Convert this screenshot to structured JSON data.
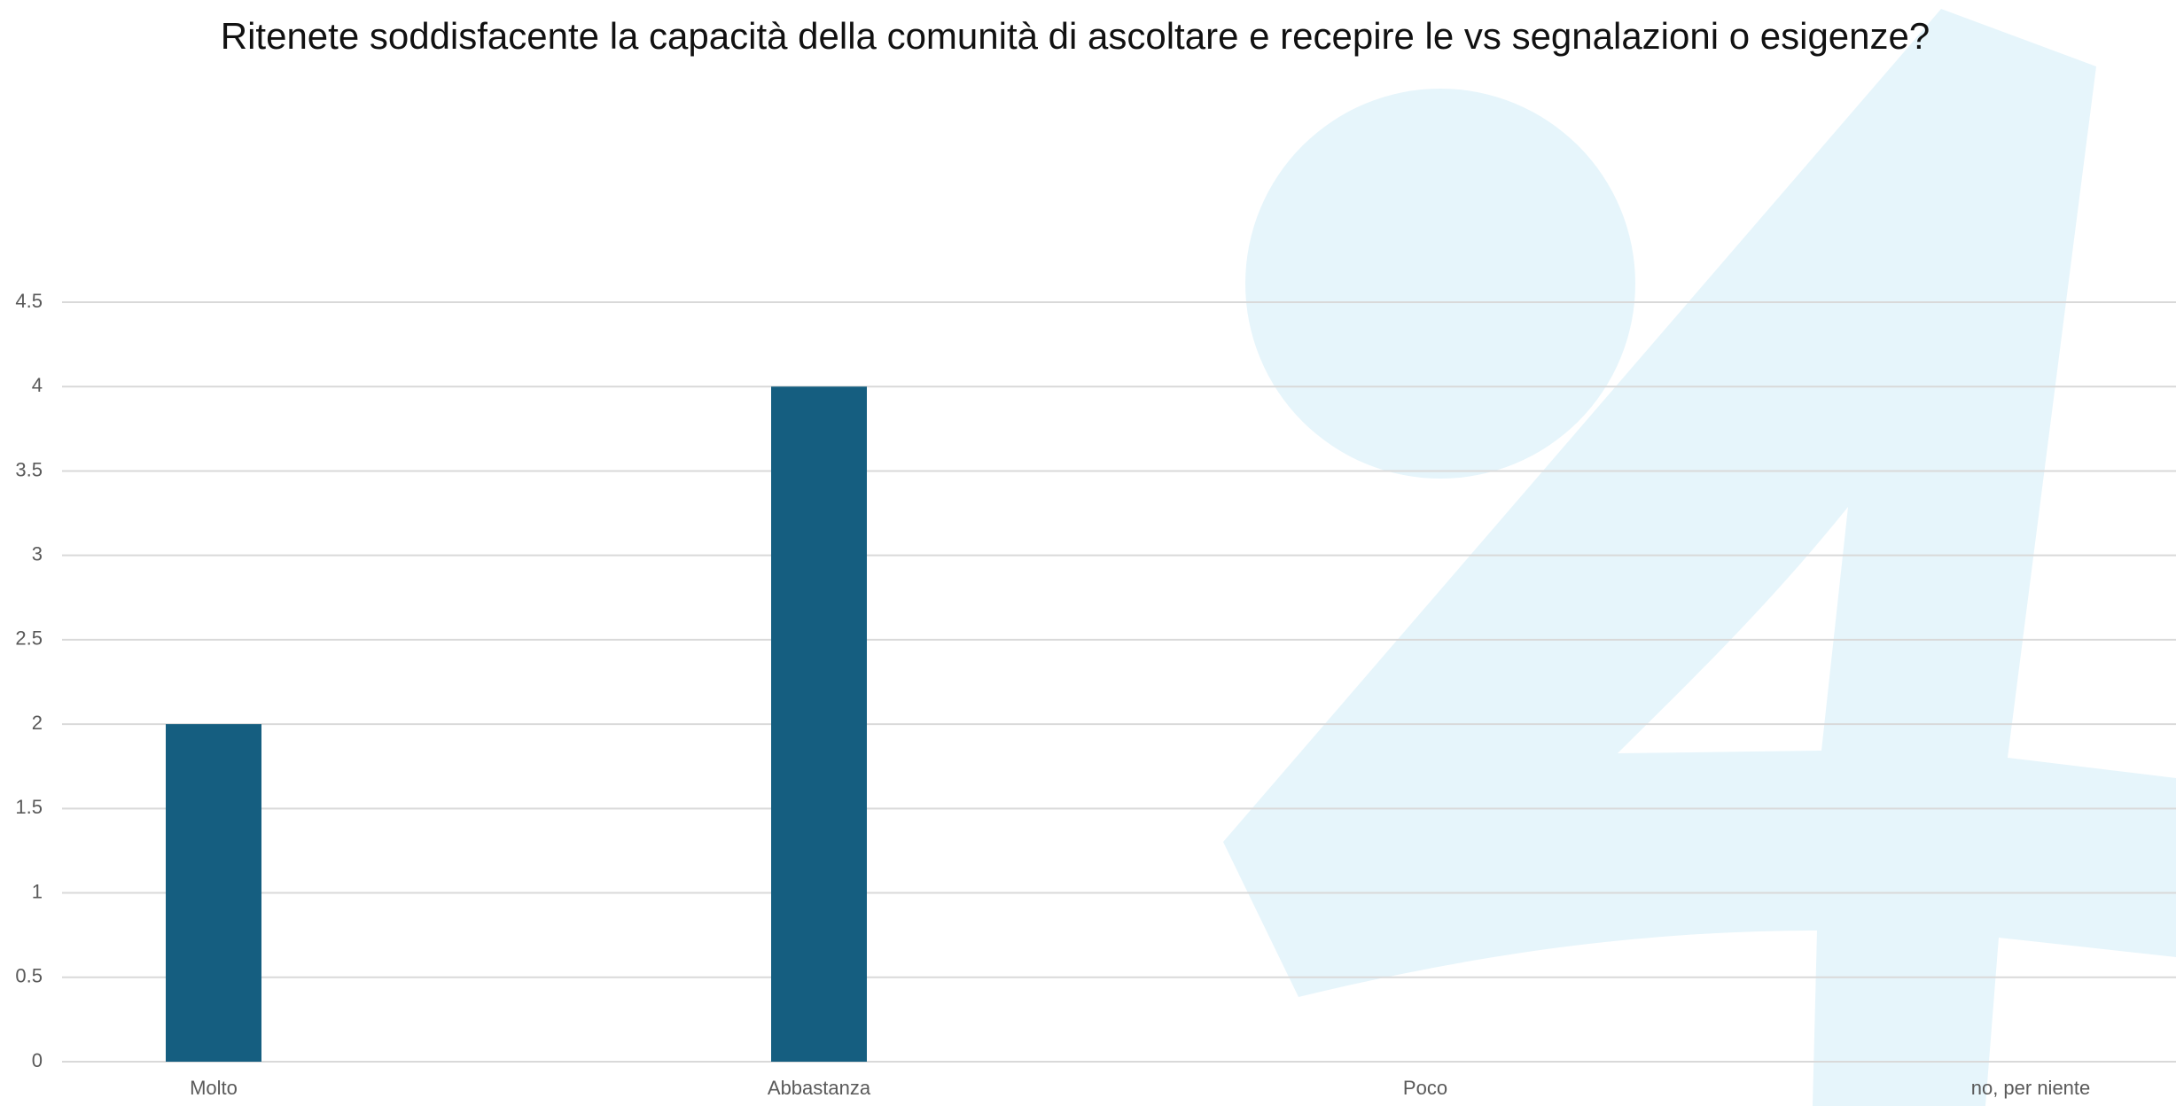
{
  "chart_data": {
    "type": "bar",
    "title": "Ritenete soddisfacente la capacità della comunità di ascoltare e recepire le vs segnalazioni o esigenze?",
    "categories": [
      "Molto",
      "Abbastanza",
      "Poco",
      "no, per niente"
    ],
    "values": [
      2,
      4,
      0,
      0
    ],
    "color": "#155e80",
    "ylim": [
      0,
      4.5
    ],
    "yticks": [
      0,
      0.5,
      1,
      1.5,
      2,
      2.5,
      3,
      3.5,
      4,
      4.5
    ],
    "grid": true
  }
}
